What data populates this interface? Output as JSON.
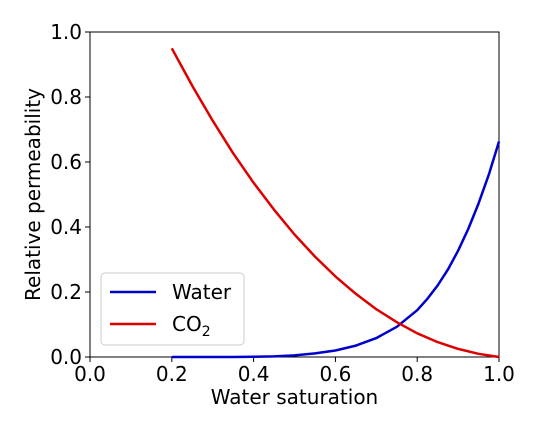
{
  "chart_data": {
    "type": "line",
    "xlabel": "Water saturation",
    "ylabel": "Relative permeability",
    "xlim": [
      0.0,
      1.0
    ],
    "ylim": [
      0.0,
      1.0
    ],
    "xticks": [
      "0.0",
      "0.2",
      "0.4",
      "0.6",
      "0.8",
      "1.0"
    ],
    "yticks": [
      "0.0",
      "0.2",
      "0.4",
      "0.6",
      "0.8",
      "1.0"
    ],
    "grid": false,
    "legend_position": "lower-left",
    "series": [
      {
        "name": "Water",
        "color": "#0000cc",
        "x": [
          0.2,
          0.25,
          0.3,
          0.35,
          0.4,
          0.45,
          0.5,
          0.55,
          0.6,
          0.65,
          0.7,
          0.75,
          0.8,
          0.825,
          0.85,
          0.875,
          0.9,
          0.925,
          0.95,
          0.975,
          1.0
        ],
        "y": [
          0.0,
          0.0,
          0.0,
          0.0,
          0.001,
          0.002,
          0.005,
          0.011,
          0.02,
          0.035,
          0.058,
          0.093,
          0.144,
          0.179,
          0.22,
          0.269,
          0.327,
          0.394,
          0.472,
          0.561,
          0.663
        ]
      },
      {
        "name": "CO",
        "name_sub": "2",
        "color": "#dd0000",
        "x": [
          0.2,
          0.25,
          0.3,
          0.35,
          0.4,
          0.45,
          0.5,
          0.55,
          0.6,
          0.65,
          0.7,
          0.75,
          0.8,
          0.85,
          0.9,
          0.95,
          1.0
        ],
        "y": [
          0.95,
          0.834,
          0.727,
          0.627,
          0.536,
          0.453,
          0.377,
          0.309,
          0.248,
          0.194,
          0.147,
          0.107,
          0.073,
          0.046,
          0.025,
          0.01,
          0.0
        ]
      }
    ]
  }
}
